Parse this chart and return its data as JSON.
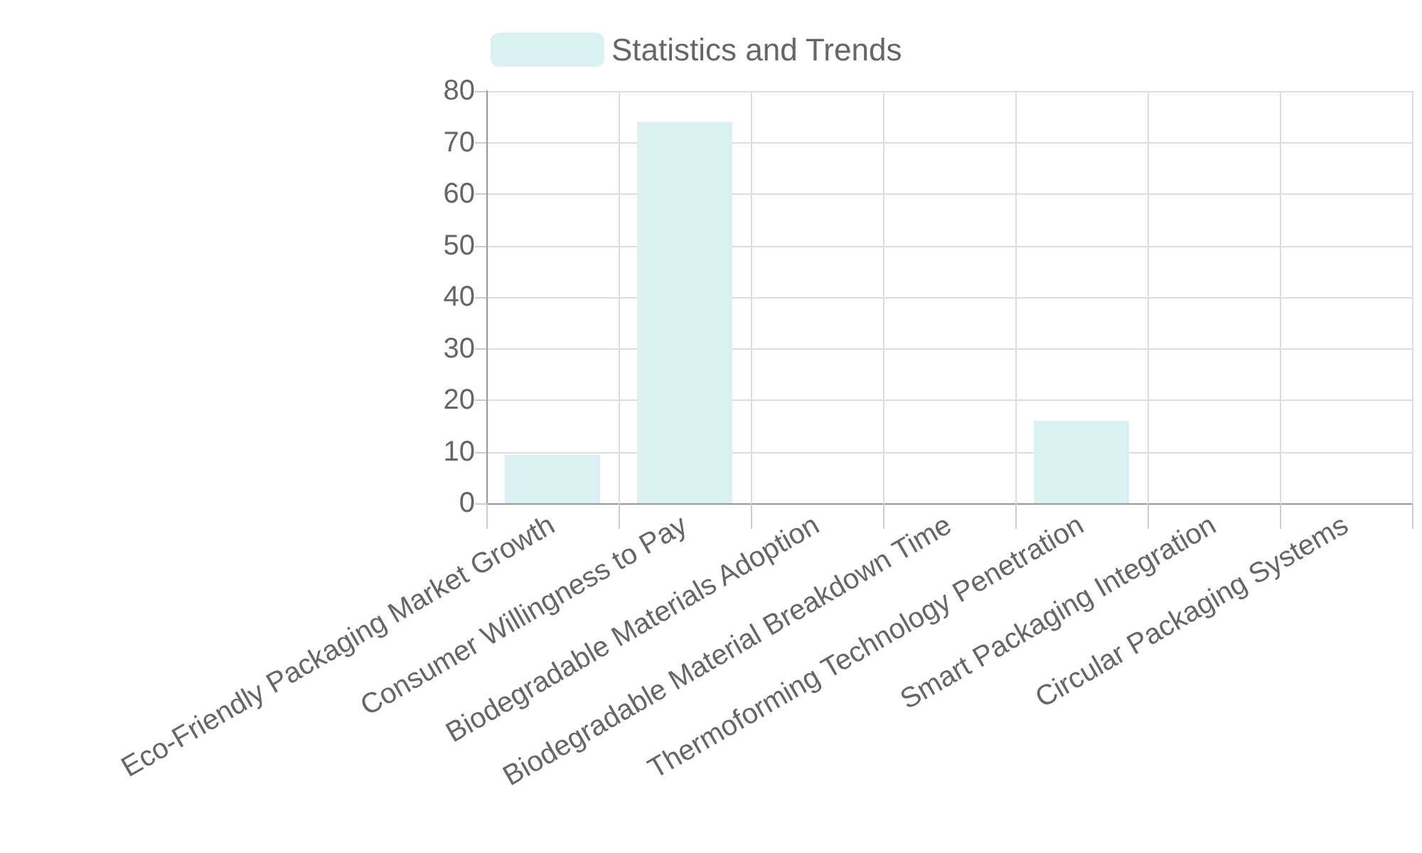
{
  "chart_data": {
    "type": "bar",
    "categories": [
      "Eco-Friendly Packaging Market Growth",
      "Consumer Willingness to Pay",
      "Biodegradable Materials Adoption",
      "Biodegradable Material Breakdown Time",
      "Thermoforming Technology Penetration",
      "Smart Packaging Integration",
      "Circular Packaging Systems"
    ],
    "series": [
      {
        "name": "Statistics and Trends",
        "color": "#dbf0f1",
        "values": [
          9.4,
          74,
          null,
          null,
          16,
          null,
          null
        ]
      }
    ],
    "ylim": [
      0,
      80
    ],
    "yticks": [
      0,
      10,
      20,
      30,
      40,
      50,
      60,
      70,
      80
    ],
    "grid": true,
    "legend": "top"
  }
}
